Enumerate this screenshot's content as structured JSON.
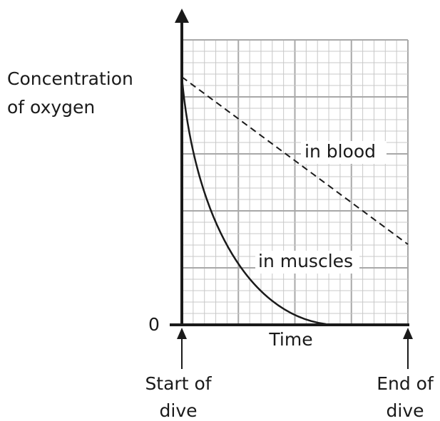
{
  "y_axis_label": [
    "Concentration",
    "of oxygen"
  ],
  "origin_label": "0",
  "x_axis_label": "Time",
  "curves": [
    {
      "label": "in blood"
    },
    {
      "label": "in muscles"
    }
  ],
  "markers": [
    {
      "lines": [
        "Start of",
        "dive"
      ]
    },
    {
      "lines": [
        "End of",
        "dive"
      ]
    }
  ]
}
